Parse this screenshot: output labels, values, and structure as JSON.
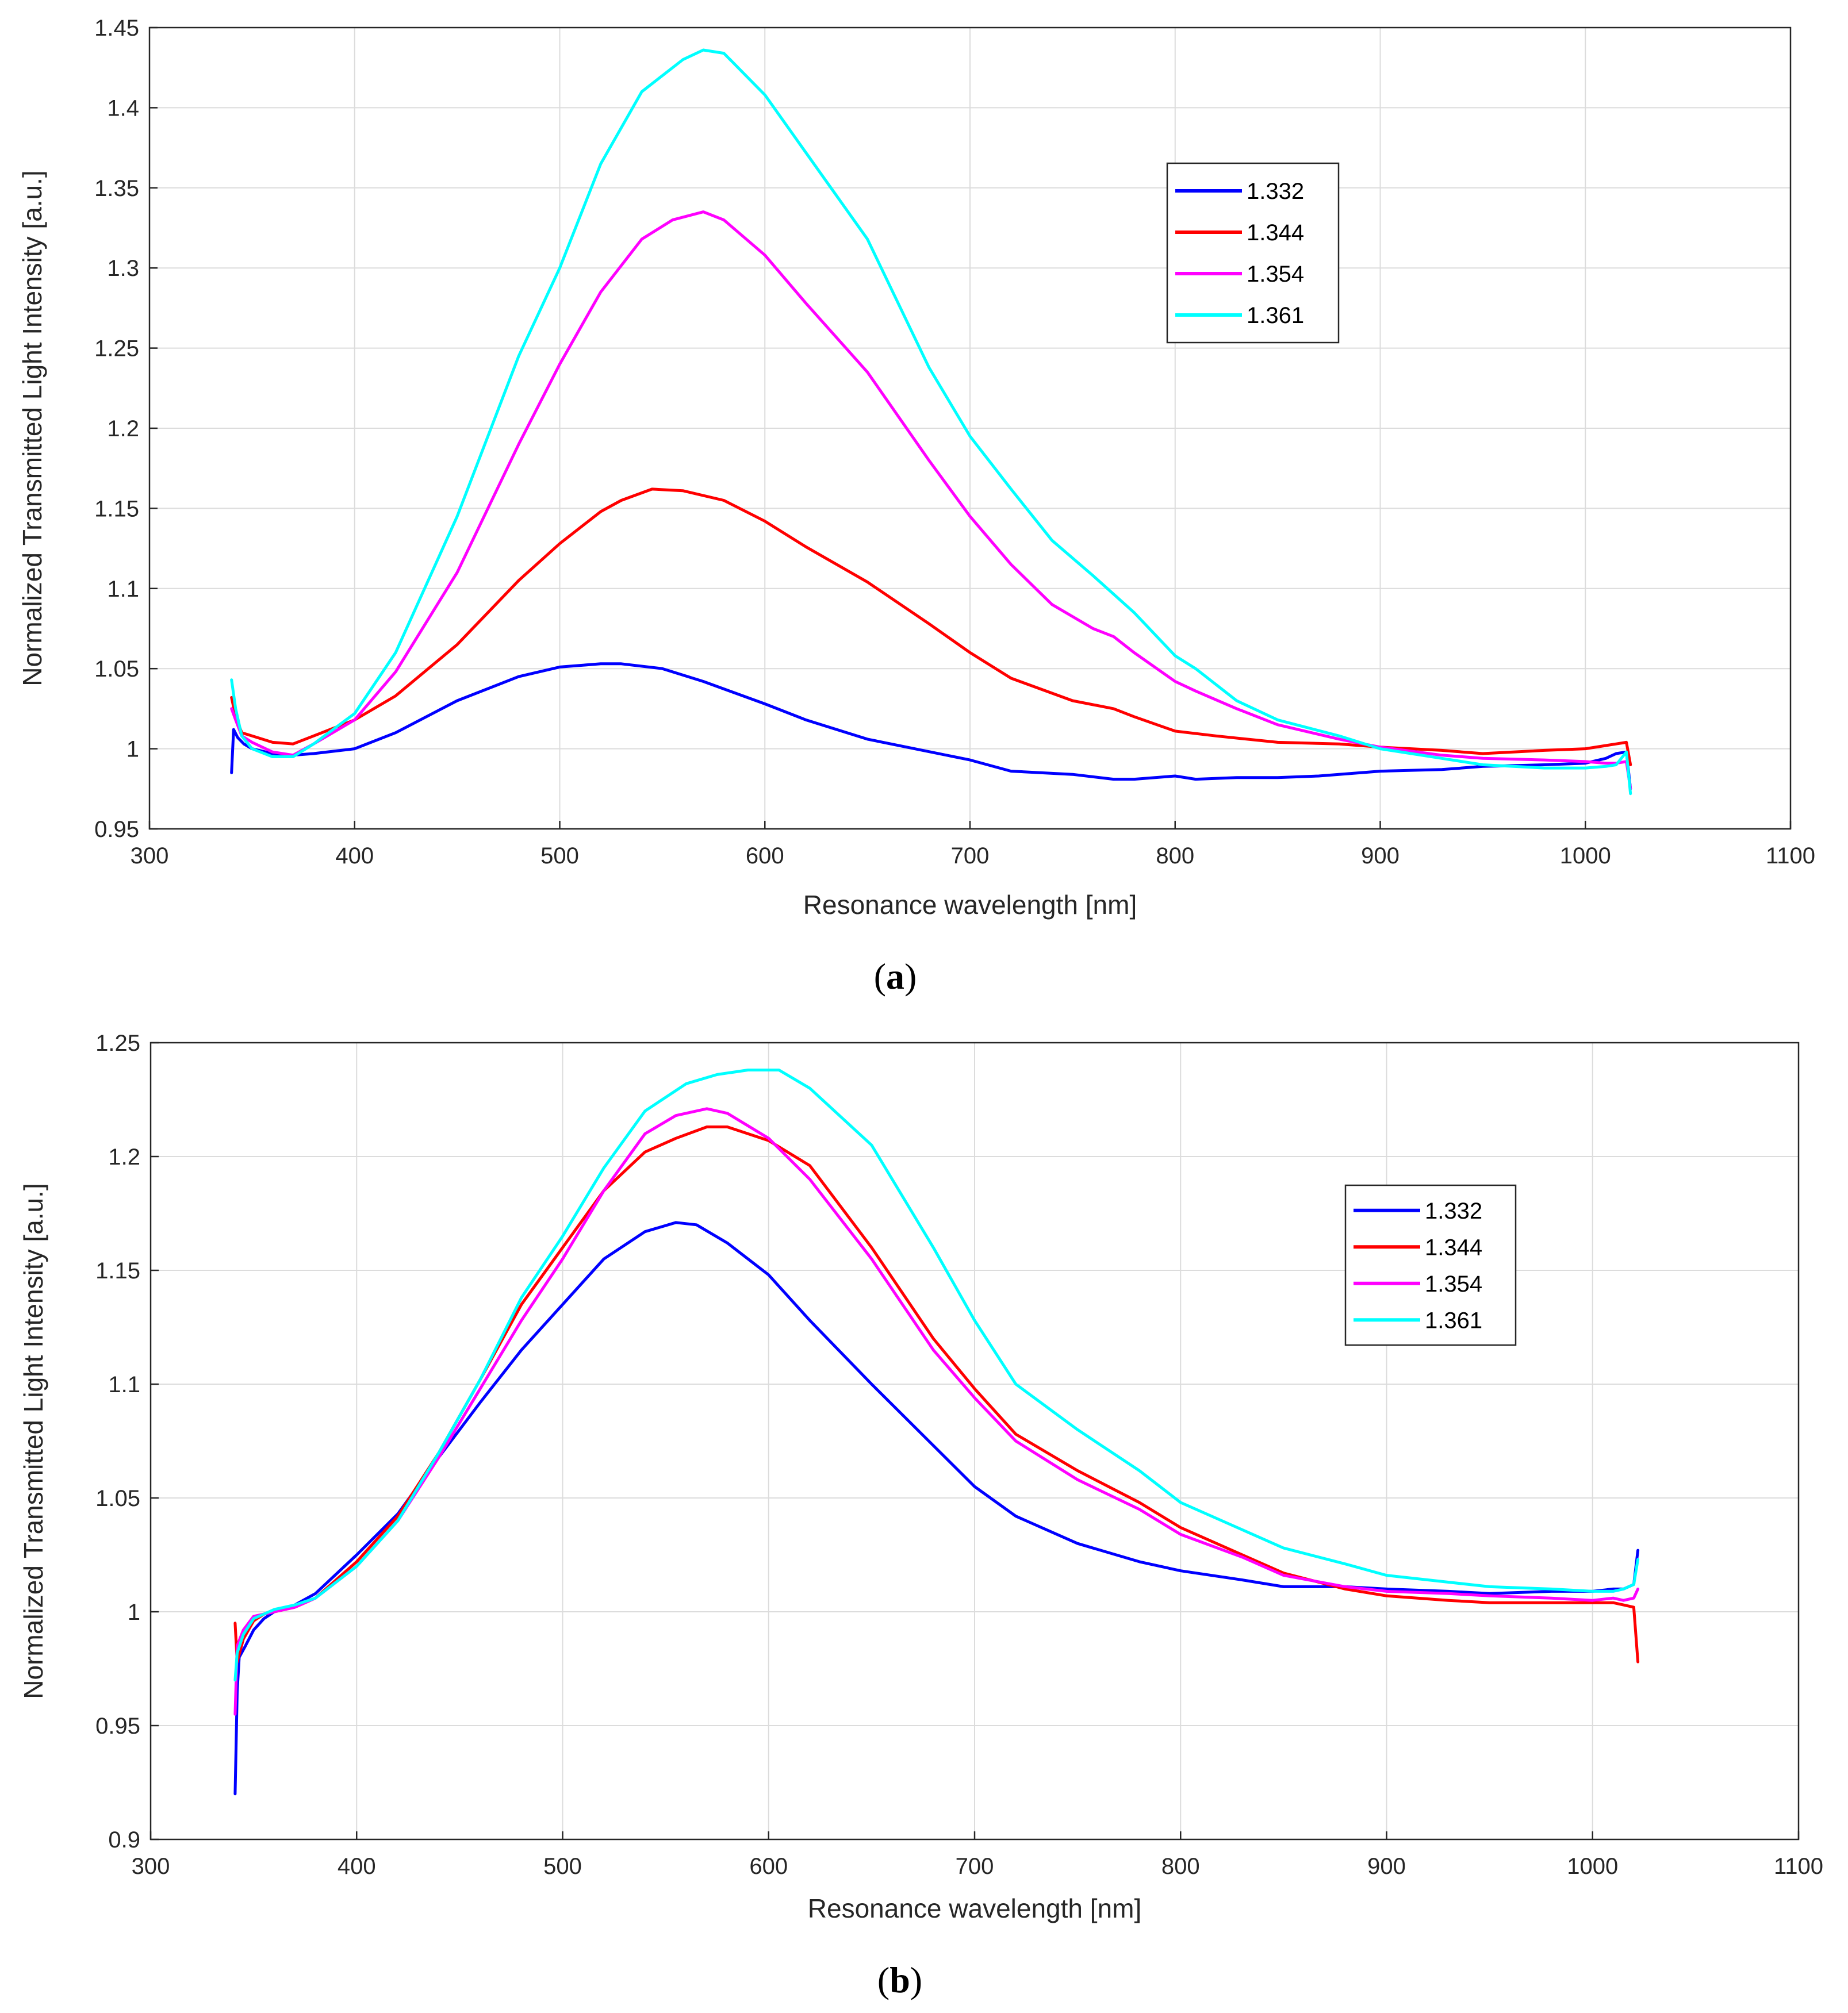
{
  "colors": {
    "blue": "#0000ff",
    "red": "#ff0000",
    "magenta": "#ff00ff",
    "cyan": "#00ffff",
    "grid": "#dcdcdc",
    "axis": "#262626"
  },
  "chart_data": [
    {
      "type": "line",
      "caption": "a",
      "xlabel": "Resonance wavelength [nm]",
      "ylabel": "Normalized Transmitted Light Intensity [a.u.]",
      "xlim": [
        300,
        1100
      ],
      "ylim": [
        0.95,
        1.45
      ],
      "xticks": [
        "300",
        "400",
        "500",
        "600",
        "700",
        "800",
        "900",
        "1000",
        "1100"
      ],
      "xtick_values": [
        300,
        400,
        500,
        600,
        700,
        800,
        900,
        1000,
        1100
      ],
      "yticks": [
        "0.95",
        "1",
        "1.05",
        "1.1",
        "1.15",
        "1.2",
        "1.25",
        "1.3",
        "1.35",
        "1.4",
        "1.45"
      ],
      "ytick_values": [
        0.95,
        1.0,
        1.05,
        1.1,
        1.15,
        1.2,
        1.25,
        1.3,
        1.35,
        1.4,
        1.45
      ],
      "grid": true,
      "legend_position": "upper-right-inner",
      "series": [
        {
          "name": "1.332",
          "color": "#0000ff",
          "x": [
            340,
            341,
            343,
            346,
            350,
            360,
            370,
            380,
            400,
            420,
            450,
            480,
            500,
            520,
            530,
            550,
            570,
            600,
            620,
            650,
            700,
            720,
            750,
            770,
            780,
            800,
            810,
            830,
            850,
            870,
            900,
            930,
            950,
            980,
            1000,
            1010,
            1015,
            1020,
            1022
          ],
          "y": [
            0.985,
            1.012,
            1.007,
            1.003,
            1.0,
            0.997,
            0.996,
            0.997,
            1.0,
            1.01,
            1.03,
            1.045,
            1.051,
            1.053,
            1.053,
            1.05,
            1.042,
            1.028,
            1.018,
            1.006,
            0.993,
            0.986,
            0.984,
            0.981,
            0.981,
            0.983,
            0.981,
            0.982,
            0.982,
            0.983,
            0.986,
            0.987,
            0.989,
            0.99,
            0.991,
            0.994,
            0.997,
            0.998,
            0.975
          ]
        },
        {
          "name": "1.344",
          "color": "#ff0000",
          "x": [
            340,
            342,
            345,
            350,
            360,
            370,
            380,
            400,
            420,
            450,
            480,
            500,
            520,
            530,
            545,
            560,
            580,
            600,
            620,
            650,
            680,
            700,
            720,
            750,
            770,
            780,
            800,
            820,
            850,
            880,
            900,
            930,
            950,
            980,
            1000,
            1010,
            1015,
            1020,
            1022
          ],
          "y": [
            1.032,
            1.02,
            1.01,
            1.008,
            1.004,
            1.003,
            1.008,
            1.018,
            1.033,
            1.065,
            1.105,
            1.128,
            1.148,
            1.155,
            1.162,
            1.161,
            1.155,
            1.142,
            1.126,
            1.104,
            1.078,
            1.06,
            1.044,
            1.03,
            1.025,
            1.02,
            1.011,
            1.008,
            1.004,
            1.003,
            1.001,
            0.999,
            0.997,
            0.999,
            1.0,
            1.002,
            1.003,
            1.004,
            0.99
          ]
        },
        {
          "name": "1.354",
          "color": "#ff00ff",
          "x": [
            340,
            342,
            345,
            350,
            360,
            370,
            380,
            400,
            420,
            450,
            480,
            500,
            520,
            540,
            555,
            570,
            580,
            600,
            620,
            650,
            680,
            700,
            720,
            740,
            760,
            770,
            780,
            800,
            810,
            830,
            850,
            880,
            900,
            930,
            950,
            980,
            1000,
            1010,
            1015,
            1020,
            1022
          ],
          "y": [
            1.025,
            1.018,
            1.008,
            1.004,
            0.998,
            0.996,
            1.003,
            1.018,
            1.048,
            1.11,
            1.19,
            1.24,
            1.285,
            1.318,
            1.33,
            1.335,
            1.33,
            1.308,
            1.278,
            1.235,
            1.18,
            1.145,
            1.115,
            1.09,
            1.075,
            1.07,
            1.06,
            1.042,
            1.036,
            1.025,
            1.015,
            1.006,
            1.001,
            0.996,
            0.994,
            0.993,
            0.992,
            0.991,
            0.991,
            0.992,
            0.975
          ]
        },
        {
          "name": "1.361",
          "color": "#00ffff",
          "x": [
            340,
            342,
            345,
            350,
            360,
            370,
            380,
            400,
            420,
            450,
            480,
            500,
            520,
            540,
            560,
            570,
            580,
            600,
            620,
            650,
            680,
            700,
            720,
            740,
            760,
            780,
            800,
            810,
            830,
            850,
            880,
            900,
            930,
            950,
            980,
            1000,
            1010,
            1015,
            1020,
            1022
          ],
          "y": [
            1.043,
            1.025,
            1.008,
            1.0,
            0.995,
            0.995,
            1.003,
            1.022,
            1.06,
            1.145,
            1.245,
            1.3,
            1.365,
            1.41,
            1.43,
            1.436,
            1.434,
            1.408,
            1.372,
            1.318,
            1.238,
            1.195,
            1.162,
            1.13,
            1.108,
            1.085,
            1.058,
            1.05,
            1.03,
            1.018,
            1.008,
            1.0,
            0.994,
            0.99,
            0.988,
            0.988,
            0.989,
            0.99,
            0.998,
            0.972
          ]
        }
      ]
    },
    {
      "type": "line",
      "caption": "b",
      "xlabel": "Resonance wavelength [nm]",
      "ylabel": "Normalized Transmitted Light Intensity [a.u.]",
      "xlim": [
        300,
        1100
      ],
      "ylim": [
        0.9,
        1.25
      ],
      "xticks": [
        "300",
        "400",
        "500",
        "600",
        "700",
        "800",
        "900",
        "1000",
        "1100"
      ],
      "xtick_values": [
        300,
        400,
        500,
        600,
        700,
        800,
        900,
        1000,
        1100
      ],
      "yticks": [
        "0.9",
        "0.95",
        "1",
        "1.05",
        "1.1",
        "1.15",
        "1.2",
        "1.25"
      ],
      "ytick_values": [
        0.9,
        0.95,
        1.0,
        1.05,
        1.1,
        1.15,
        1.2,
        1.25
      ],
      "grid": true,
      "legend_position": "upper-right-inner",
      "series": [
        {
          "name": "1.332",
          "color": "#0000ff",
          "x": [
            341,
            342,
            343,
            346,
            350,
            355,
            360,
            370,
            380,
            400,
            420,
            440,
            460,
            480,
            500,
            520,
            540,
            555,
            565,
            580,
            600,
            620,
            650,
            680,
            700,
            720,
            750,
            780,
            800,
            830,
            850,
            880,
            900,
            930,
            950,
            980,
            1000,
            1010,
            1015,
            1020,
            1022
          ],
          "y": [
            0.92,
            0.965,
            0.98,
            0.985,
            0.992,
            0.997,
            1.0,
            1.003,
            1.008,
            1.025,
            1.043,
            1.068,
            1.092,
            1.115,
            1.135,
            1.155,
            1.167,
            1.171,
            1.17,
            1.162,
            1.148,
            1.128,
            1.1,
            1.073,
            1.055,
            1.042,
            1.03,
            1.022,
            1.018,
            1.014,
            1.011,
            1.011,
            1.01,
            1.009,
            1.008,
            1.009,
            1.009,
            1.01,
            1.01,
            1.012,
            1.027
          ]
        },
        {
          "name": "1.344",
          "color": "#ff0000",
          "x": [
            341,
            342,
            345,
            350,
            355,
            360,
            370,
            380,
            400,
            420,
            440,
            460,
            480,
            500,
            520,
            540,
            555,
            570,
            580,
            600,
            620,
            650,
            680,
            700,
            720,
            750,
            780,
            800,
            830,
            850,
            880,
            900,
            930,
            950,
            980,
            1000,
            1010,
            1015,
            1020,
            1022
          ],
          "y": [
            0.995,
            0.978,
            0.988,
            0.996,
            0.999,
            1.0,
            1.002,
            1.006,
            1.022,
            1.042,
            1.07,
            1.102,
            1.135,
            1.16,
            1.185,
            1.202,
            1.208,
            1.213,
            1.213,
            1.207,
            1.196,
            1.16,
            1.12,
            1.098,
            1.078,
            1.062,
            1.048,
            1.037,
            1.025,
            1.017,
            1.01,
            1.007,
            1.005,
            1.004,
            1.004,
            1.004,
            1.004,
            1.003,
            1.002,
            0.978
          ]
        },
        {
          "name": "1.354",
          "color": "#ff00ff",
          "x": [
            341,
            342,
            345,
            350,
            355,
            360,
            370,
            380,
            400,
            420,
            440,
            460,
            480,
            500,
            520,
            540,
            555,
            570,
            580,
            600,
            620,
            650,
            680,
            700,
            720,
            750,
            780,
            800,
            830,
            850,
            880,
            900,
            930,
            950,
            980,
            1000,
            1010,
            1015,
            1020,
            1022
          ],
          "y": [
            0.955,
            0.985,
            0.992,
            0.998,
            0.999,
            1.0,
            1.002,
            1.006,
            1.02,
            1.04,
            1.068,
            1.098,
            1.128,
            1.155,
            1.185,
            1.21,
            1.218,
            1.221,
            1.219,
            1.208,
            1.19,
            1.155,
            1.115,
            1.094,
            1.075,
            1.058,
            1.045,
            1.034,
            1.024,
            1.016,
            1.011,
            1.009,
            1.008,
            1.007,
            1.006,
            1.005,
            1.006,
            1.005,
            1.006,
            1.01
          ]
        },
        {
          "name": "1.361",
          "color": "#00ffff",
          "x": [
            341,
            342,
            345,
            350,
            355,
            360,
            370,
            380,
            400,
            420,
            440,
            460,
            480,
            500,
            520,
            540,
            560,
            575,
            590,
            605,
            620,
            650,
            680,
            700,
            720,
            750,
            780,
            800,
            830,
            850,
            880,
            900,
            930,
            950,
            980,
            1000,
            1010,
            1015,
            1020,
            1022
          ],
          "y": [
            0.97,
            0.982,
            0.99,
            0.997,
            0.999,
            1.001,
            1.003,
            1.006,
            1.02,
            1.04,
            1.07,
            1.102,
            1.138,
            1.165,
            1.195,
            1.22,
            1.232,
            1.236,
            1.238,
            1.238,
            1.23,
            1.205,
            1.16,
            1.128,
            1.1,
            1.08,
            1.062,
            1.048,
            1.036,
            1.028,
            1.021,
            1.016,
            1.013,
            1.011,
            1.01,
            1.009,
            1.009,
            1.01,
            1.012,
            1.023
          ]
        }
      ]
    }
  ]
}
